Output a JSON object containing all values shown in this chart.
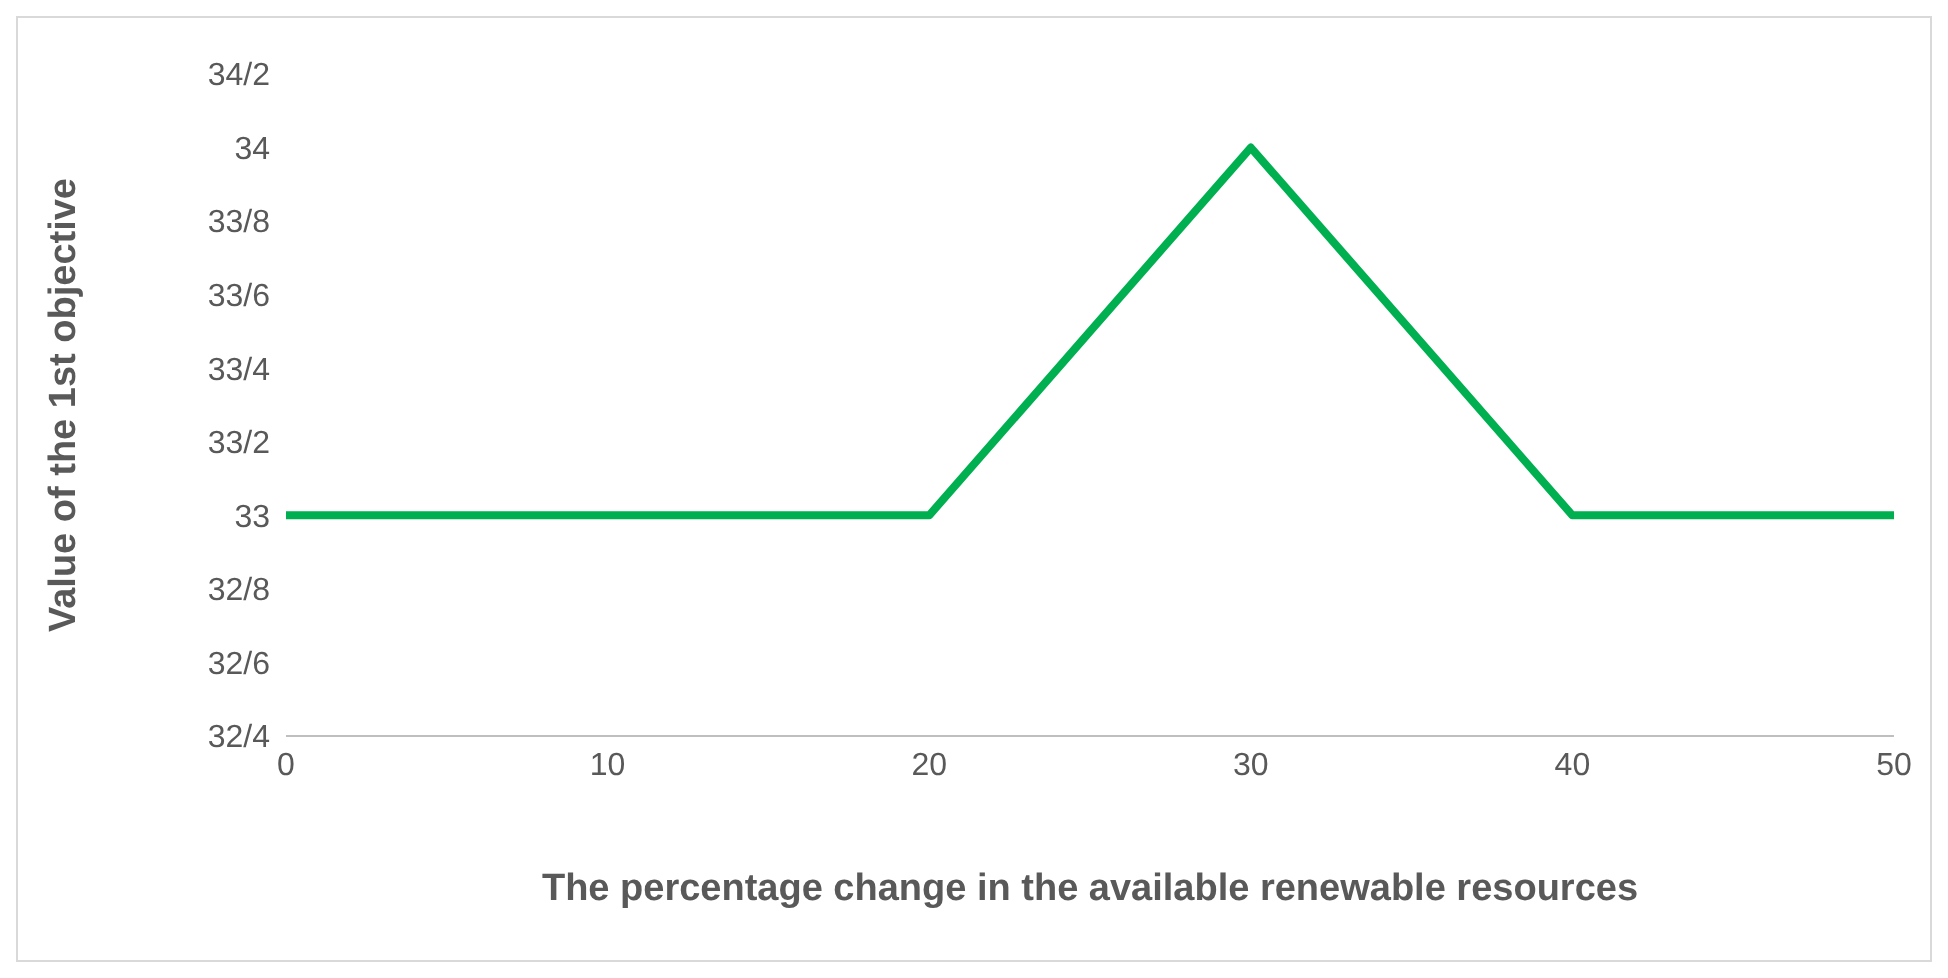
{
  "chart_data": {
    "type": "line",
    "xlabel": "The percentage change in the available renewable resources",
    "ylabel": "Value of the 1st objective",
    "categories": [
      "0",
      "10",
      "20",
      "30",
      "40",
      "50"
    ],
    "series": [
      {
        "color": "#00b050",
        "values": [
          33,
          33,
          33,
          34,
          33,
          33
        ]
      }
    ],
    "ylim": [
      32.4,
      34.2
    ],
    "yticks": [
      {
        "value": 32.4,
        "label": "32/4"
      },
      {
        "value": 32.6,
        "label": "32/6"
      },
      {
        "value": 32.8,
        "label": "32/8"
      },
      {
        "value": 33,
        "label": "33"
      },
      {
        "value": 33.2,
        "label": "33/2"
      },
      {
        "value": 33.4,
        "label": "33/4"
      },
      {
        "value": 33.6,
        "label": "33/6"
      },
      {
        "value": 33.8,
        "label": "33/8"
      },
      {
        "value": 34,
        "label": "34"
      },
      {
        "value": 34.2,
        "label": "34/2"
      }
    ],
    "grid": false,
    "legend": false,
    "marker": "none",
    "line_style": "solid"
  }
}
